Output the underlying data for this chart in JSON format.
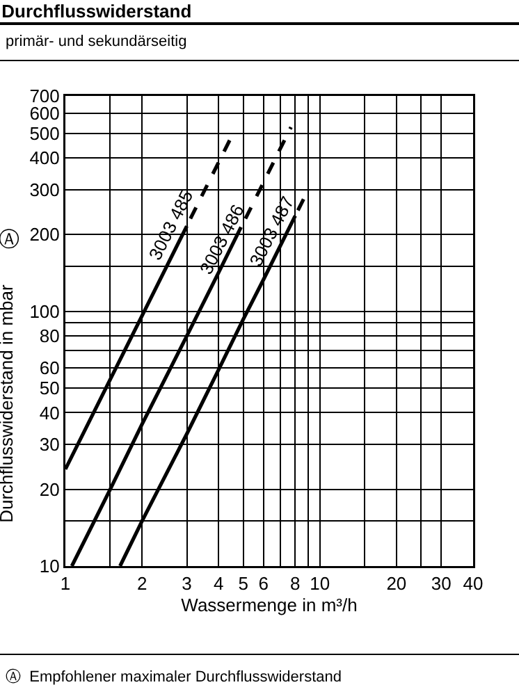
{
  "chart_data": {
    "type": "line",
    "title": "Durchflusswiderstand",
    "subtitle": "primär- und sekundärseitig",
    "xlabel": "Wassermenge in m³/h",
    "ylabel": "Durchflusswiderstand in mbar",
    "log": "xy",
    "grid": true,
    "marker": "none",
    "xlim": [
      1,
      40
    ],
    "ylim": [
      10,
      700
    ],
    "xticks": [
      1,
      {
        "value": 1.5,
        "label": null
      },
      2,
      3,
      4,
      5,
      6,
      {
        "value": 7,
        "label": null
      },
      8,
      {
        "value": 9,
        "label": null
      },
      10,
      {
        "value": 15,
        "label": null
      },
      20,
      {
        "value": 25,
        "label": null
      },
      30,
      40
    ],
    "yticks": [
      10,
      {
        "value": 15,
        "label": null
      },
      20,
      30,
      40,
      50,
      60,
      {
        "value": 70,
        "label": null
      },
      80,
      {
        "value": 90,
        "label": null
      },
      100,
      {
        "value": 150,
        "label": null
      },
      200,
      300,
      400,
      500,
      600,
      700
    ],
    "series": [
      {
        "color": "#000000",
        "line_style": "solid",
        "x": [
          1,
          1.5,
          2,
          2.5,
          3
        ],
        "values": [
          24,
          54,
          96,
          150,
          216
        ]
      },
      {
        "color": "#000000",
        "line_style": "dashed",
        "x": [
          3.1,
          4.5
        ],
        "values": [
          231,
          486
        ]
      },
      {
        "color": "#000000",
        "line_style": "solid",
        "x": [
          1.06,
          1.5,
          2,
          3,
          4,
          4.9
        ],
        "values": [
          10,
          20,
          36,
          80,
          142,
          214
        ]
      },
      {
        "color": "#000000",
        "line_style": "dashed",
        "x": [
          5.1,
          7.7
        ],
        "values": [
          231,
          528
        ]
      },
      {
        "color": "#000000",
        "line_style": "solid",
        "x": [
          1.64,
          2,
          3,
          4,
          5,
          6,
          8
        ],
        "values": [
          10,
          15,
          33,
          59,
          93,
          133,
          237
        ]
      },
      {
        "color": "#000000",
        "line_style": "dashed",
        "x": [
          8.2,
          8.7
        ],
        "values": [
          249,
          280
        ]
      }
    ],
    "annotations": [
      "3003 485",
      "3003 486",
      "3003 487",
      "Ⓐ",
      "Ⓐ  Empfohlener maximaler Durchflusswiderstand"
    ]
  }
}
